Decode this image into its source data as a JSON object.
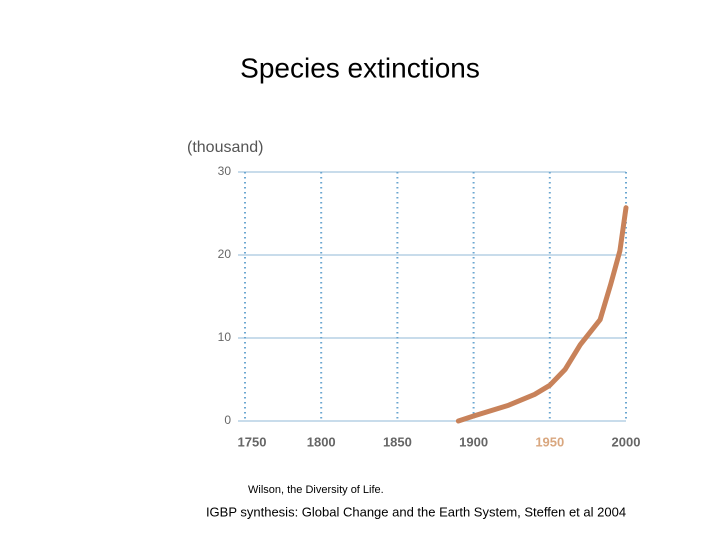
{
  "chart_data": {
    "type": "line",
    "title": "Species extinctions",
    "y_label": "(thousand)",
    "x": [
      1890,
      1900,
      1923,
      1940,
      1950,
      1960,
      1970,
      1983,
      1990,
      1996,
      2000
    ],
    "series": [
      {
        "name": "Species extinctions",
        "color": "#c8825a",
        "values": [
          0,
          0.6,
          1.9,
          3.2,
          4.3,
          6.2,
          9.2,
          12.2,
          16.5,
          20.5,
          25.7
        ]
      }
    ],
    "xlim": [
      1750,
      2000
    ],
    "ylim": [
      0,
      30
    ],
    "xticks": [
      1750,
      1800,
      1850,
      1900,
      1950,
      2000
    ],
    "yticks": [
      0,
      10,
      20,
      30
    ],
    "highlight_xtick": 1950,
    "highlight_color": "#d9a77f",
    "grid": true,
    "source": "Wilson, the Diversity of Life.",
    "citation": "IGBP synthesis: Global Change and the Earth System, Steffen et al 2004"
  }
}
